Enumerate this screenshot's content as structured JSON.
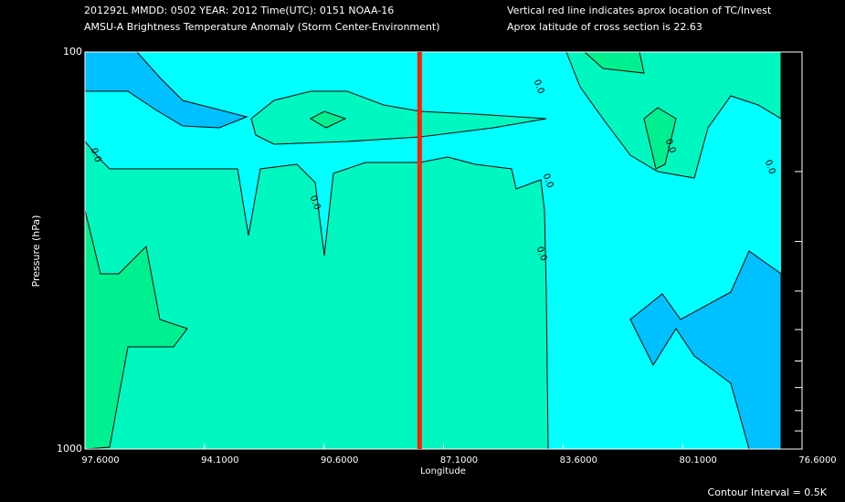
{
  "chart_data": {
    "type": "contour",
    "header_left": [
      "201292L  MMDD: 0502 YEAR: 2012 Time(UTC): 0151 NOAA-16",
      "AMSU-A Brightness Temperature Anomaly (Storm Center-Environment)"
    ],
    "header_right": [
      "Vertical red line indicates aprox location of TC/Invest",
      "Aprox latitude of cross section is 22.63"
    ],
    "xlabel": "Longitude",
    "ylabel": "Pressure (hPa)",
    "footer": "Contour Interval = 0.5K",
    "xlim": [
      97.6,
      76.6
    ],
    "xticks": [
      {
        "value": 97.6,
        "label": "97.6000"
      },
      {
        "value": 94.1,
        "label": "94.1000"
      },
      {
        "value": 90.6,
        "label": "90.6000"
      },
      {
        "value": 87.1,
        "label": "87.1000"
      },
      {
        "value": 83.6,
        "label": "83.6000"
      },
      {
        "value": 80.1,
        "label": "80.1000"
      },
      {
        "value": 76.6,
        "label": "76.6000"
      }
    ],
    "ylim": [
      100,
      1000
    ],
    "log_y": true,
    "yticks": [
      100,
      1000
    ],
    "yminor_ticks": [
      200,
      300,
      400,
      500,
      600,
      700,
      800,
      900
    ],
    "tc_longitude": 87.8,
    "tc_color": "#ff2000",
    "contour_labels": [
      "0.0",
      "0.0",
      "0.0",
      "0.0",
      "0.0",
      "0.0",
      "0.0"
    ]
  }
}
